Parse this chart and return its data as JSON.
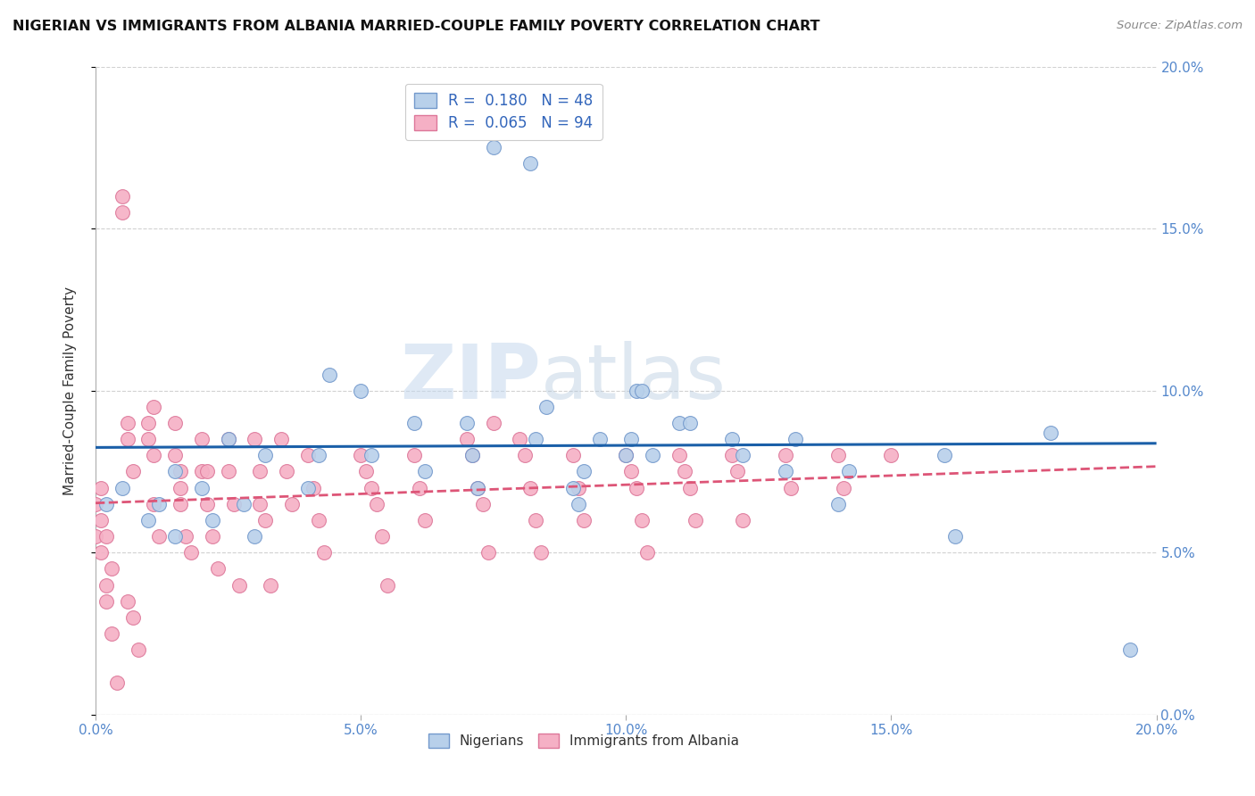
{
  "title": "NIGERIAN VS IMMIGRANTS FROM ALBANIA MARRIED-COUPLE FAMILY POVERTY CORRELATION CHART",
  "source": "Source: ZipAtlas.com",
  "ylabel": "Married-Couple Family Poverty",
  "legend_nigerians": "Nigerians",
  "legend_albania": "Immigrants from Albania",
  "r_nigerian": 0.18,
  "n_nigerian": 48,
  "r_albania": 0.065,
  "n_albania": 94,
  "xlim": [
    0.0,
    0.2
  ],
  "ylim": [
    0.0,
    0.2
  ],
  "xticks": [
    0.0,
    0.05,
    0.1,
    0.15,
    0.2
  ],
  "yticks": [
    0.0,
    0.05,
    0.1,
    0.15,
    0.2
  ],
  "color_nigerian": "#b8d0ea",
  "color_albania": "#f5b0c5",
  "edge_nigerian": "#7399cc",
  "edge_albania": "#dd7799",
  "line_nigerian": "#1a5fa8",
  "line_albania": "#dd5577",
  "watermark_zip": "ZIP",
  "watermark_atlas": "atlas",
  "nigerian_x": [
    0.002,
    0.005,
    0.01,
    0.012,
    0.015,
    0.015,
    0.02,
    0.022,
    0.025,
    0.028,
    0.03,
    0.032,
    0.04,
    0.042,
    0.044,
    0.05,
    0.052,
    0.06,
    0.062,
    0.07,
    0.071,
    0.072,
    0.075,
    0.08,
    0.082,
    0.083,
    0.085,
    0.09,
    0.091,
    0.092,
    0.095,
    0.1,
    0.101,
    0.102,
    0.103,
    0.105,
    0.11,
    0.112,
    0.12,
    0.122,
    0.13,
    0.132,
    0.14,
    0.142,
    0.16,
    0.162,
    0.18,
    0.195
  ],
  "nigerian_y": [
    0.065,
    0.07,
    0.06,
    0.065,
    0.055,
    0.075,
    0.07,
    0.06,
    0.085,
    0.065,
    0.055,
    0.08,
    0.07,
    0.08,
    0.105,
    0.1,
    0.08,
    0.09,
    0.075,
    0.09,
    0.08,
    0.07,
    0.175,
    0.185,
    0.17,
    0.085,
    0.095,
    0.07,
    0.065,
    0.075,
    0.085,
    0.08,
    0.085,
    0.1,
    0.1,
    0.08,
    0.09,
    0.09,
    0.085,
    0.08,
    0.075,
    0.085,
    0.065,
    0.075,
    0.08,
    0.055,
    0.087,
    0.02
  ],
  "albania_x": [
    0.0,
    0.0,
    0.001,
    0.001,
    0.001,
    0.002,
    0.002,
    0.002,
    0.003,
    0.003,
    0.004,
    0.005,
    0.005,
    0.006,
    0.006,
    0.007,
    0.01,
    0.01,
    0.011,
    0.011,
    0.012,
    0.015,
    0.015,
    0.016,
    0.016,
    0.017,
    0.018,
    0.02,
    0.02,
    0.021,
    0.022,
    0.023,
    0.025,
    0.025,
    0.026,
    0.027,
    0.03,
    0.031,
    0.031,
    0.032,
    0.033,
    0.035,
    0.036,
    0.037,
    0.04,
    0.041,
    0.042,
    0.043,
    0.05,
    0.051,
    0.052,
    0.053,
    0.054,
    0.055,
    0.06,
    0.061,
    0.062,
    0.07,
    0.071,
    0.072,
    0.073,
    0.074,
    0.075,
    0.08,
    0.081,
    0.082,
    0.083,
    0.084,
    0.09,
    0.091,
    0.092,
    0.1,
    0.101,
    0.102,
    0.103,
    0.104,
    0.11,
    0.111,
    0.112,
    0.113,
    0.12,
    0.121,
    0.122,
    0.13,
    0.131,
    0.14,
    0.141,
    0.15,
    0.016,
    0.021,
    0.011,
    0.006,
    0.007,
    0.008
  ],
  "albania_y": [
    0.065,
    0.055,
    0.07,
    0.06,
    0.05,
    0.04,
    0.055,
    0.035,
    0.025,
    0.045,
    0.01,
    0.16,
    0.155,
    0.09,
    0.085,
    0.075,
    0.09,
    0.085,
    0.08,
    0.065,
    0.055,
    0.09,
    0.08,
    0.075,
    0.065,
    0.055,
    0.05,
    0.085,
    0.075,
    0.065,
    0.055,
    0.045,
    0.085,
    0.075,
    0.065,
    0.04,
    0.085,
    0.075,
    0.065,
    0.06,
    0.04,
    0.085,
    0.075,
    0.065,
    0.08,
    0.07,
    0.06,
    0.05,
    0.08,
    0.075,
    0.07,
    0.065,
    0.055,
    0.04,
    0.08,
    0.07,
    0.06,
    0.085,
    0.08,
    0.07,
    0.065,
    0.05,
    0.09,
    0.085,
    0.08,
    0.07,
    0.06,
    0.05,
    0.08,
    0.07,
    0.06,
    0.08,
    0.075,
    0.07,
    0.06,
    0.05,
    0.08,
    0.075,
    0.07,
    0.06,
    0.08,
    0.075,
    0.06,
    0.08,
    0.07,
    0.08,
    0.07,
    0.08,
    0.07,
    0.075,
    0.095,
    0.035,
    0.03,
    0.02
  ]
}
